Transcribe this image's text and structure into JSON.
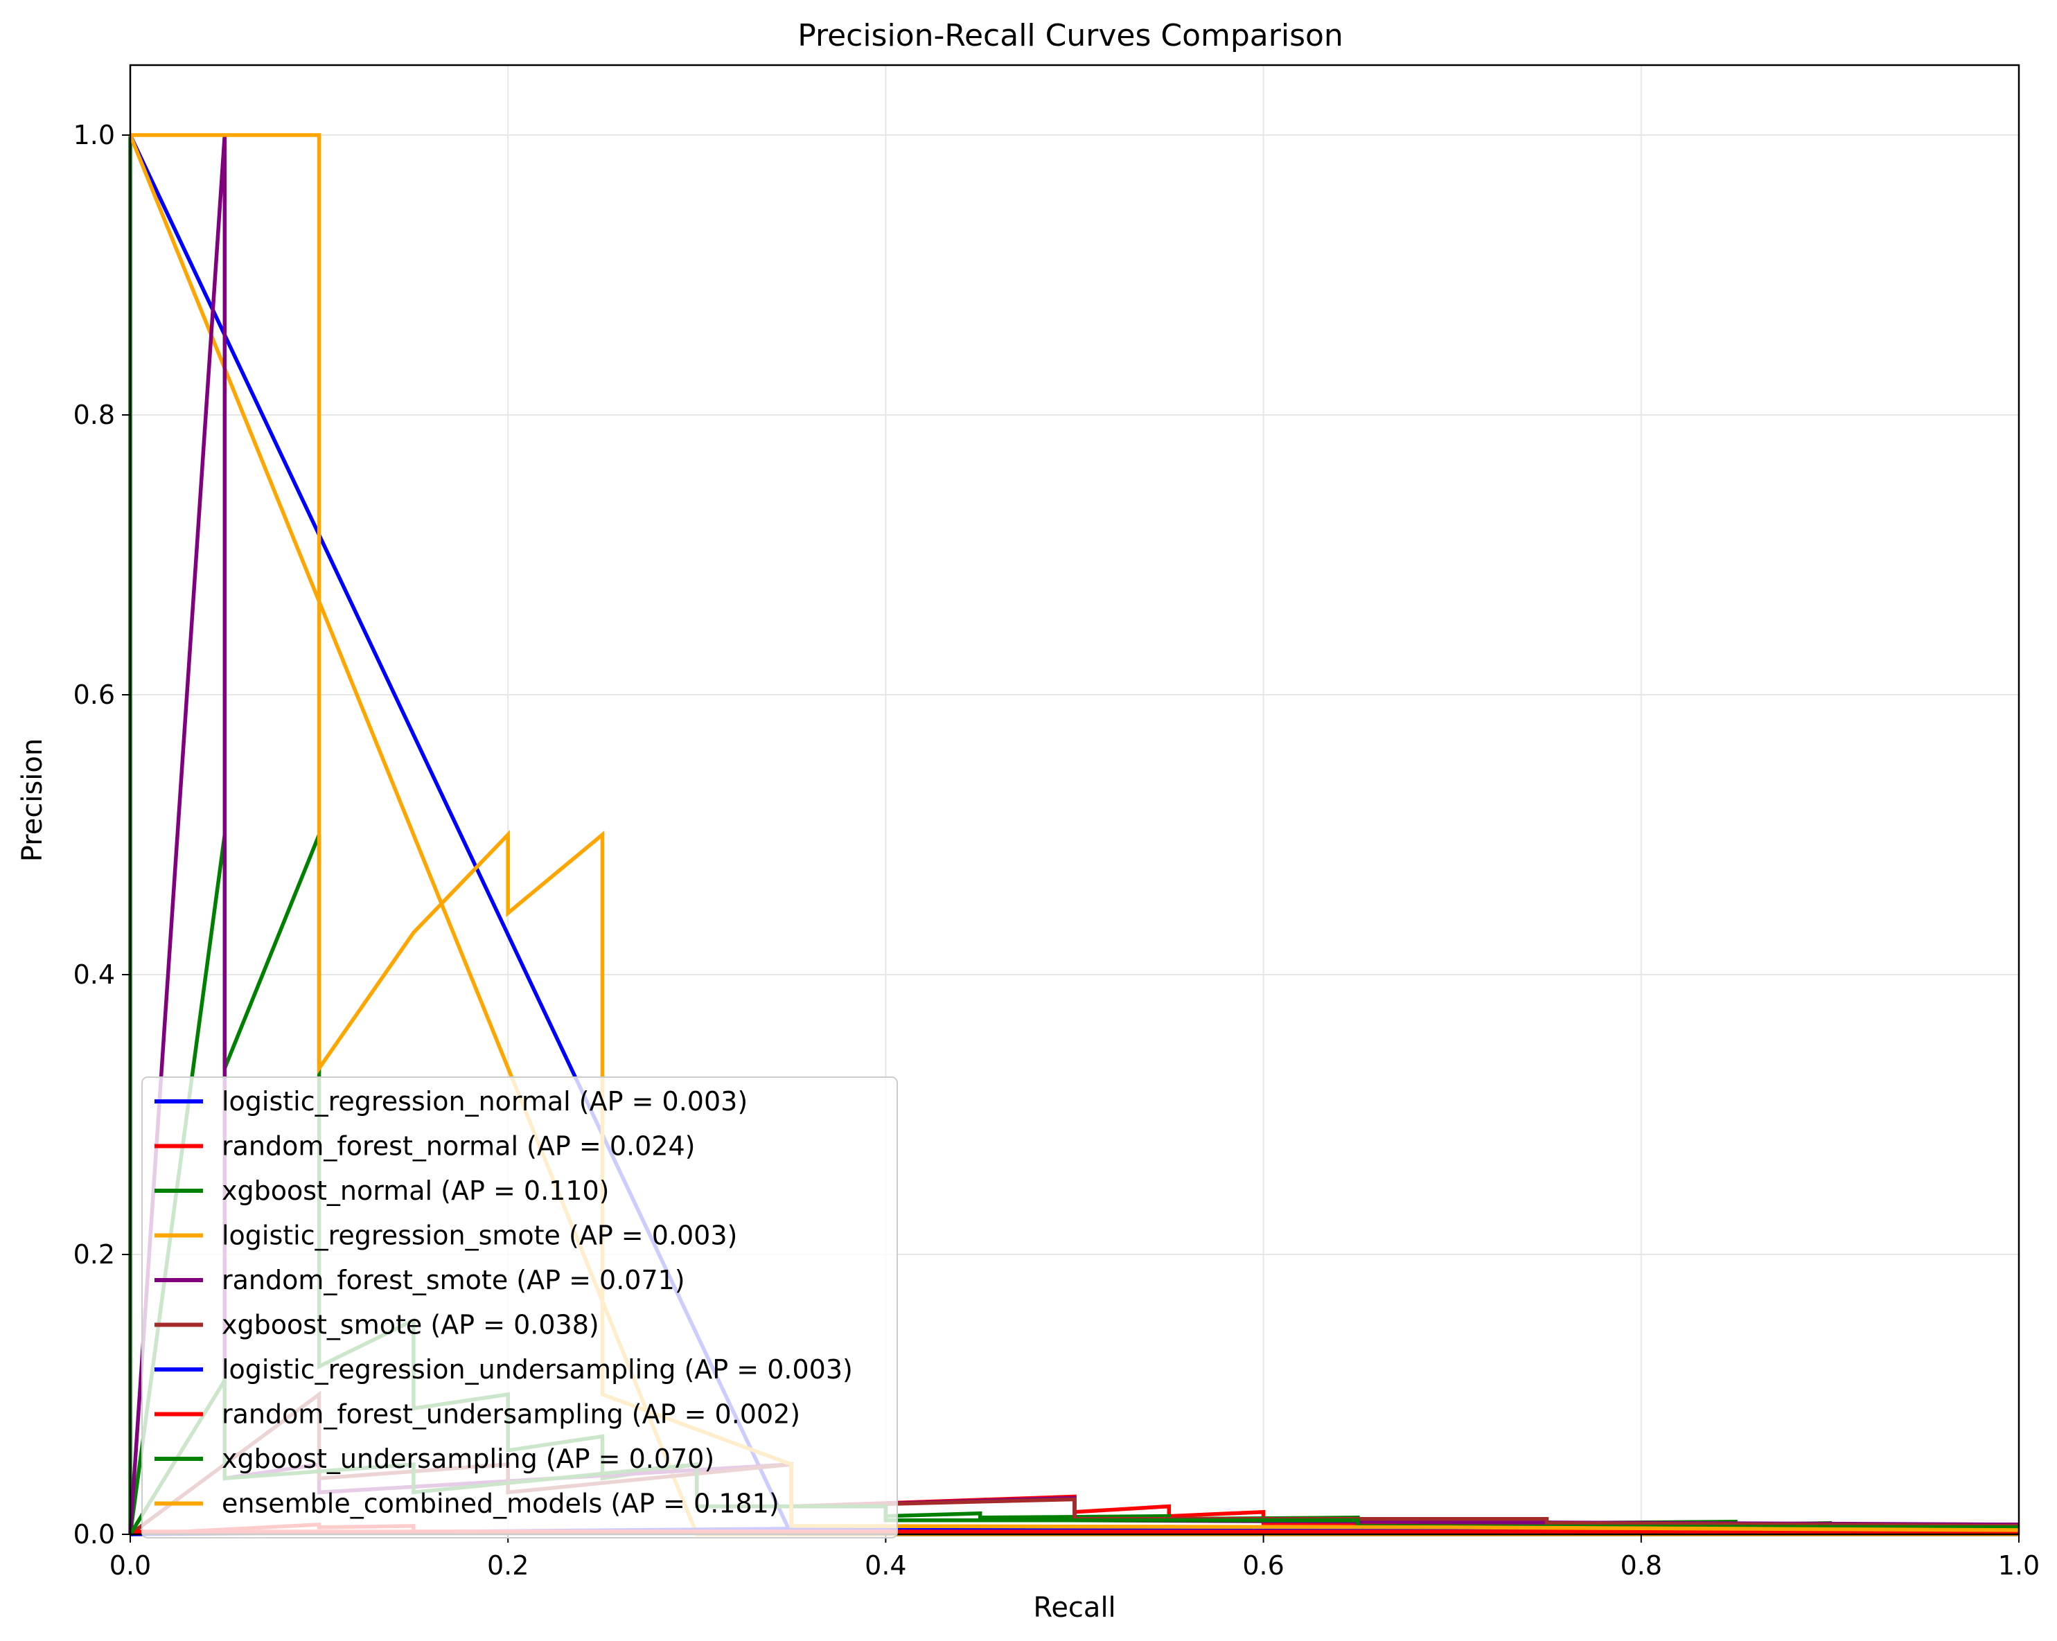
{
  "chart_data": {
    "type": "line",
    "title": "Precision-Recall Curves Comparison",
    "xlabel": "Recall",
    "ylabel": "Precision",
    "xlim": [
      0.0,
      1.0
    ],
    "ylim": [
      0.0,
      1.05
    ],
    "xticks": [
      "0.0",
      "0.2",
      "0.4",
      "0.6",
      "0.8",
      "1.0"
    ],
    "yticks": [
      "0.0",
      "0.2",
      "0.4",
      "0.6",
      "0.8",
      "1.0"
    ],
    "grid": true,
    "legend_position": "lower-left",
    "series": [
      {
        "name": "logistic_regression_normal (AP = 0.003)",
        "color": "#0000ff",
        "points": [
          [
            0,
            1
          ],
          [
            0.35,
            0
          ],
          [
            1,
            0
          ]
        ]
      },
      {
        "name": "random_forest_normal (AP = 0.024)",
        "color": "#ff0000",
        "points": [
          [
            0,
            0
          ],
          [
            0.1,
            0.007
          ],
          [
            0.1,
            0.005
          ],
          [
            0.15,
            0.006
          ],
          [
            0.15,
            0.002
          ],
          [
            0.35,
            0.002
          ],
          [
            0.35,
            0.02
          ],
          [
            0.5,
            0.027
          ],
          [
            0.5,
            0.016
          ],
          [
            0.55,
            0.02
          ],
          [
            0.55,
            0.013
          ],
          [
            0.6,
            0.016
          ],
          [
            0.6,
            0.008
          ],
          [
            1,
            0.007
          ]
        ]
      },
      {
        "name": "xgboost_normal (AP = 0.110)",
        "color": "#008000",
        "points": [
          [
            0,
            1
          ],
          [
            0,
            0
          ],
          [
            0.05,
            0.5
          ],
          [
            0.05,
            0.333
          ],
          [
            0.1,
            0.5
          ],
          [
            0.1,
            0.12
          ],
          [
            0.15,
            0.153
          ],
          [
            0.15,
            0.09
          ],
          [
            0.2,
            0.1
          ],
          [
            0.2,
            0.06
          ],
          [
            0.25,
            0.07
          ],
          [
            0.25,
            0.04
          ],
          [
            0.3,
            0.05
          ],
          [
            0.3,
            0.02
          ],
          [
            0.4,
            0.02
          ],
          [
            0.4,
            0.013
          ],
          [
            0.45,
            0.015
          ],
          [
            0.45,
            0.012
          ],
          [
            0.55,
            0.013
          ],
          [
            0.55,
            0.011
          ],
          [
            0.65,
            0.012
          ],
          [
            0.65,
            0.009
          ],
          [
            0.75,
            0.01
          ],
          [
            0.75,
            0.008
          ],
          [
            0.85,
            0.009
          ],
          [
            0.85,
            0.007
          ],
          [
            0.9,
            0.008
          ],
          [
            0.9,
            0.006
          ],
          [
            0.95,
            0.007
          ],
          [
            0.95,
            0.004
          ],
          [
            1,
            0.004
          ]
        ]
      },
      {
        "name": "logistic_regression_smote (AP = 0.003)",
        "color": "#ffa500",
        "points": [
          [
            0,
            1
          ],
          [
            0.3,
            0
          ],
          [
            1,
            0
          ]
        ]
      },
      {
        "name": "random_forest_smote (AP = 0.071)",
        "color": "#800080",
        "points": [
          [
            0,
            0
          ],
          [
            0.05,
            1
          ],
          [
            0.05,
            0.04
          ],
          [
            0.1,
            0.05
          ],
          [
            0.1,
            0.03
          ],
          [
            0.35,
            0.05
          ],
          [
            0.35,
            0.02
          ],
          [
            0.5,
            0.026
          ],
          [
            0.5,
            0.01
          ],
          [
            1,
            0.007
          ]
        ]
      },
      {
        "name": "xgboost_smote (AP = 0.038)",
        "color": "#a52a2a",
        "points": [
          [
            0,
            0
          ],
          [
            0.1,
            0.1
          ],
          [
            0.1,
            0.04
          ],
          [
            0.2,
            0.05
          ],
          [
            0.2,
            0.03
          ],
          [
            0.35,
            0.05
          ],
          [
            0.35,
            0.02
          ],
          [
            0.5,
            0.025
          ],
          [
            0.5,
            0.011
          ],
          [
            0.75,
            0.011
          ],
          [
            0.75,
            0.008
          ],
          [
            1,
            0.006
          ]
        ]
      },
      {
        "name": "logistic_regression_undersampling (AP = 0.003)",
        "color": "#0000ff",
        "points": [
          [
            0,
            0
          ],
          [
            0.35,
            0.004
          ],
          [
            1,
            0.003
          ]
        ]
      },
      {
        "name": "random_forest_undersampling (AP = 0.002)",
        "color": "#ff0000",
        "points": [
          [
            0,
            0.002
          ],
          [
            1,
            0.002
          ]
        ]
      },
      {
        "name": "xgboost_undersampling (AP = 0.070)",
        "color": "#008000",
        "points": [
          [
            0,
            0
          ],
          [
            0.05,
            0.11
          ],
          [
            0.05,
            0.04
          ],
          [
            0.15,
            0.05
          ],
          [
            0.15,
            0.03
          ],
          [
            0.3,
            0.05
          ],
          [
            0.3,
            0.02
          ],
          [
            0.4,
            0.02
          ],
          [
            0.4,
            0.01
          ],
          [
            0.65,
            0.01
          ],
          [
            0.65,
            0.006
          ],
          [
            1,
            0.005
          ]
        ]
      },
      {
        "name": "ensemble_combined_models (AP = 0.181)",
        "color": "#ffa500",
        "points": [
          [
            0,
            1
          ],
          [
            0.1,
            1
          ],
          [
            0.1,
            0.333
          ],
          [
            0.15,
            0.43
          ],
          [
            0.2,
            0.5
          ],
          [
            0.2,
            0.444
          ],
          [
            0.25,
            0.5
          ],
          [
            0.25,
            0.1
          ],
          [
            0.35,
            0.05
          ],
          [
            0.35,
            0.006
          ],
          [
            0.7,
            0.005
          ],
          [
            1,
            0.003
          ]
        ]
      }
    ]
  }
}
